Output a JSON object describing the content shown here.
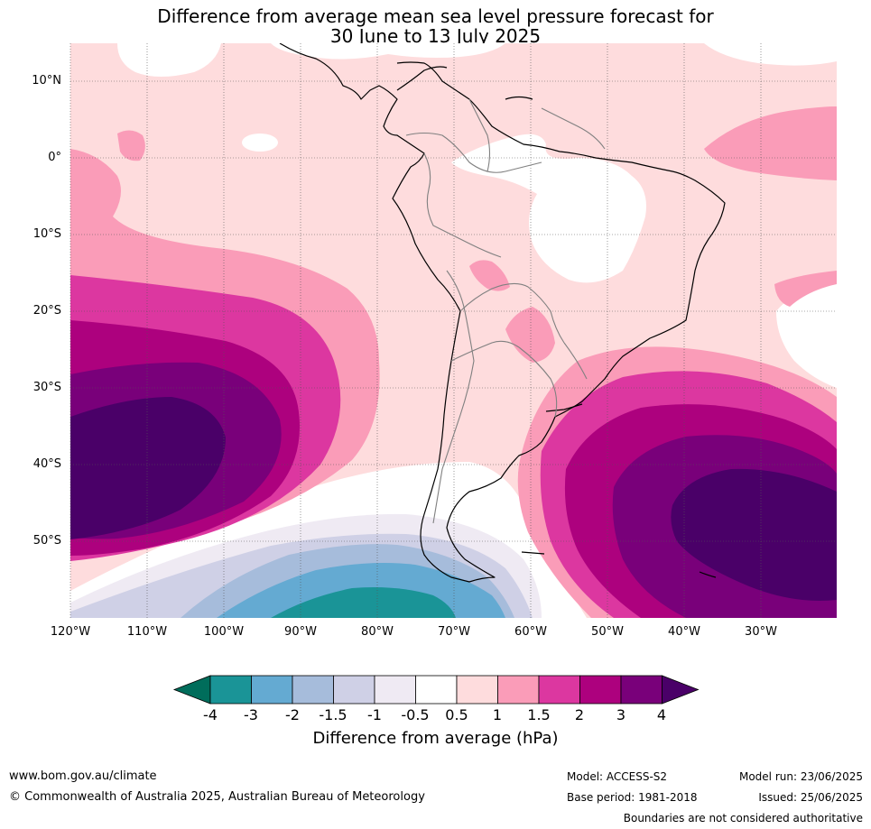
{
  "title_line1": "Difference from average mean sea level pressure forecast for",
  "title_line2": "30 June to 13 July 2025",
  "lat_labels": [
    "10°N",
    "0°",
    "10°S",
    "20°S",
    "30°S",
    "40°S",
    "50°S"
  ],
  "lon_labels": [
    "120°W",
    "110°W",
    "100°W",
    "90°W",
    "80°W",
    "70°W",
    "60°W",
    "50°W",
    "40°W",
    "30°W"
  ],
  "colorbar": {
    "label": "Difference from average (hPa)",
    "ticks": [
      "-4",
      "-3",
      "-2",
      "-1.5",
      "-1",
      "-0.5",
      "0.5",
      "1",
      "1.5",
      "2",
      "3",
      "4"
    ],
    "colors": [
      "#1a9497",
      "#64aad2",
      "#a6bcdb",
      "#cfd0e6",
      "#efeaf3",
      "#ffffff",
      "#fedcdd",
      "#fa9cb8",
      "#dc37a0",
      "#ad017e",
      "#79007a",
      "#4a0068"
    ],
    "below_color": "#006d5b",
    "above_color": "#4a0068"
  },
  "footer": {
    "website": "www.bom.gov.au/climate",
    "copyright": "© Commonwealth of Australia 2025, Australian Bureau of Meteorology",
    "model": "Model: ACCESS-S2",
    "base_period": "Base period: 1981-2018",
    "model_run": "Model run: 23/06/2025",
    "issued": "Issued: 25/06/2025",
    "disclaimer": "Boundaries are not considered authoritative"
  }
}
